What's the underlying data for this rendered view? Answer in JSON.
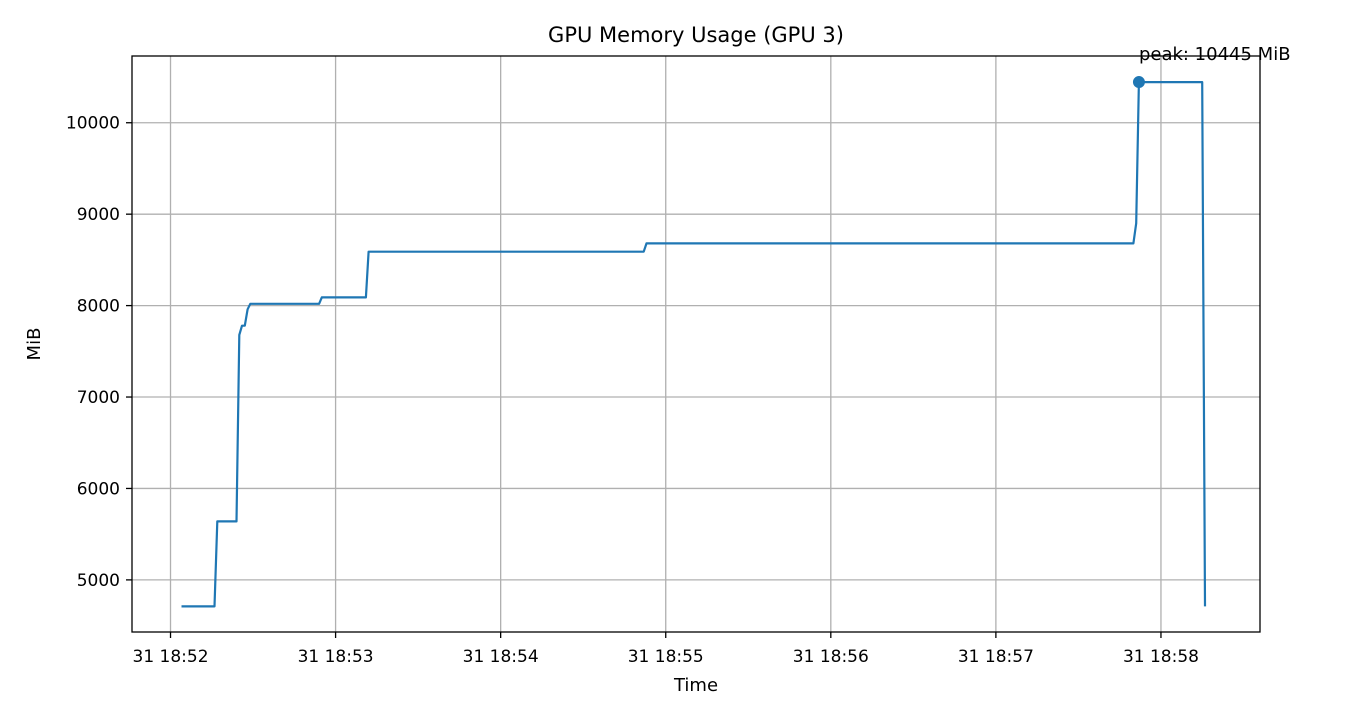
{
  "chart_data": {
    "type": "line",
    "title": "GPU Memory Usage (GPU 3)",
    "xlabel": "Time",
    "ylabel": "MiB",
    "x_unit": "time HH:MM:SS",
    "xlim": [
      "18:51:46",
      "18:58:36"
    ],
    "ylim": [
      4430,
      10730
    ],
    "x_ticks": [
      {
        "t": "18:52:00",
        "label": "31 18:52"
      },
      {
        "t": "18:53:00",
        "label": "31 18:53"
      },
      {
        "t": "18:54:00",
        "label": "31 18:54"
      },
      {
        "t": "18:55:00",
        "label": "31 18:55"
      },
      {
        "t": "18:56:00",
        "label": "31 18:56"
      },
      {
        "t": "18:57:00",
        "label": "31 18:57"
      },
      {
        "t": "18:58:00",
        "label": "31 18:58"
      }
    ],
    "y_ticks": [
      {
        "value": 5000,
        "label": "5000"
      },
      {
        "value": 6000,
        "label": "6000"
      },
      {
        "value": 7000,
        "label": "7000"
      },
      {
        "value": 8000,
        "label": "8000"
      },
      {
        "value": 9000,
        "label": "9000"
      },
      {
        "value": 10000,
        "label": "10000"
      }
    ],
    "grid": true,
    "series": [
      {
        "color": "#1f77b4",
        "points": [
          [
            "18:52:04",
            4710
          ],
          [
            "18:52:16",
            4710
          ],
          [
            "18:52:17",
            5640
          ],
          [
            "18:52:24",
            5640
          ],
          [
            "18:52:25",
            7680
          ],
          [
            "18:52:26",
            7780
          ],
          [
            "18:52:27",
            7780
          ],
          [
            "18:52:28",
            7960
          ],
          [
            "18:52:29",
            8020
          ],
          [
            "18:52:54",
            8020
          ],
          [
            "18:52:55",
            8090
          ],
          [
            "18:53:11",
            8090
          ],
          [
            "18:53:12",
            8590
          ],
          [
            "18:54:52",
            8590
          ],
          [
            "18:54:53",
            8680
          ],
          [
            "18:57:50",
            8680
          ],
          [
            "18:57:51",
            8900
          ],
          [
            "18:57:52",
            10445
          ],
          [
            "18:58:15",
            10445
          ],
          [
            "18:58:16",
            4710
          ]
        ]
      }
    ],
    "peak": {
      "t": "18:57:52",
      "value": 10445,
      "label": "peak: 10445 MiB"
    }
  }
}
